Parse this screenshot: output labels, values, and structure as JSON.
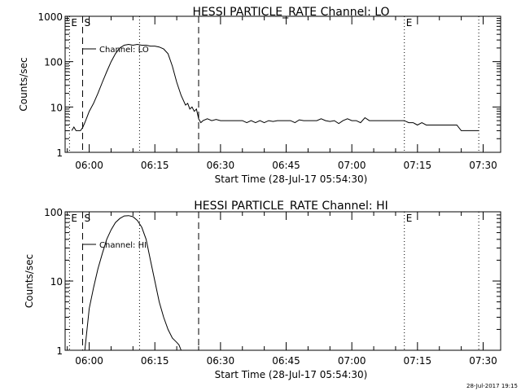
{
  "footer": {
    "timestamp": "28-Jul-2017 19:15"
  },
  "chart_data": [
    {
      "type": "line",
      "title": "HESSI PARTICLE_RATE Channel: LO",
      "xlabel": "Start Time (28-Jul-17 05:54:30)",
      "ylabel": "Counts/sec",
      "yscale": "log",
      "ylim": [
        1,
        1000
      ],
      "xlim": [
        "05:54:30",
        "07:34:00"
      ],
      "x_ticks": [
        "06:00",
        "06:15",
        "06:30",
        "06:45",
        "07:00",
        "07:15",
        "07:30"
      ],
      "y_ticks": [
        "1",
        "10",
        "100",
        "1000"
      ],
      "legend": {
        "label": "Channel: LO",
        "placement": "top-left"
      },
      "markers": [
        {
          "label": "E",
          "time": "05:55:30",
          "style": "dotted"
        },
        {
          "label": "S",
          "time": "05:58:30",
          "style": "dashed"
        },
        {
          "label": "",
          "time": "06:11:30",
          "style": "dotted"
        },
        {
          "label": "",
          "time": "06:25:00",
          "style": "dashed"
        },
        {
          "label": "E",
          "time": "07:12:00",
          "style": "dotted"
        },
        {
          "label": "",
          "time": "07:29:00",
          "style": "dotted"
        }
      ],
      "series": [
        {
          "x": [
            "05:56:00",
            "05:56:30",
            "05:57:00",
            "05:57:30",
            "05:58:00",
            "05:58:30",
            "05:59:00",
            "05:59:30",
            "06:00:00",
            "06:01:00",
            "06:02:00",
            "06:03:00",
            "06:04:00",
            "06:05:00",
            "06:06:00",
            "06:07:00",
            "06:08:00",
            "06:09:00",
            "06:10:00",
            "06:11:00",
            "06:12:00",
            "06:13:00",
            "06:14:00",
            "06:15:00",
            "06:16:00",
            "06:17:00",
            "06:18:00",
            "06:19:00",
            "06:20:00",
            "06:21:00",
            "06:22:00",
            "06:22:30",
            "06:23:00",
            "06:23:30",
            "06:24:00",
            "06:24:30",
            "06:25:00",
            "06:25:30",
            "06:26:00",
            "06:27:00",
            "06:28:00",
            "06:29:00",
            "06:30:00",
            "06:31:00",
            "06:32:00",
            "06:33:00",
            "06:34:00",
            "06:35:00",
            "06:36:00",
            "06:37:00",
            "06:38:00",
            "06:39:00",
            "06:40:00",
            "06:41:00",
            "06:42:00",
            "06:43:00",
            "06:44:00",
            "06:45:00",
            "06:46:00",
            "06:47:00",
            "06:48:00",
            "06:49:00",
            "06:50:00",
            "06:51:00",
            "06:52:00",
            "06:53:00",
            "06:54:00",
            "06:55:00",
            "06:56:00",
            "06:57:00",
            "06:58:00",
            "06:59:00",
            "07:00:00",
            "07:01:00",
            "07:02:00",
            "07:03:00",
            "07:04:00",
            "07:05:00",
            "07:06:00",
            "07:07:00",
            "07:08:00",
            "07:09:00",
            "07:10:00",
            "07:11:00",
            "07:12:00",
            "07:13:00",
            "07:14:00",
            "07:15:00",
            "07:16:00",
            "07:17:00",
            "07:18:00",
            "07:19:00",
            "07:20:00",
            "07:21:00",
            "07:22:00",
            "07:23:00",
            "07:24:00",
            "07:25:00",
            "07:26:00",
            "07:27:00",
            "07:28:00",
            "07:29:00"
          ],
          "y": [
            3,
            3.6,
            3,
            3,
            3,
            3.5,
            4.5,
            6,
            8,
            12,
            20,
            35,
            60,
            100,
            150,
            200,
            230,
            240,
            230,
            240,
            230,
            230,
            220,
            220,
            210,
            190,
            150,
            80,
            35,
            18,
            11,
            12,
            9,
            10,
            8,
            9,
            5.5,
            4.5,
            5,
            5.5,
            5,
            5.3,
            5,
            5,
            5,
            5,
            5,
            5,
            4.5,
            5,
            4.5,
            5,
            4.5,
            5,
            4.8,
            5,
            5,
            5,
            5,
            4.5,
            5.2,
            5,
            5,
            5,
            5,
            5.5,
            5,
            4.8,
            5,
            4.3,
            5,
            5.5,
            5,
            5,
            4.5,
            5.8,
            5,
            5,
            5,
            5,
            5,
            5,
            5,
            5,
            5,
            4.5,
            4.5,
            4,
            4.5,
            4,
            4,
            4,
            4,
            4,
            4,
            4,
            4,
            3,
            3,
            3,
            3,
            3
          ]
        }
      ]
    },
    {
      "type": "line",
      "title": "HESSI PARTICLE_RATE Channel: HI",
      "xlabel": "Start Time (28-Jul-17 05:54:30)",
      "ylabel": "Counts/sec",
      "yscale": "log",
      "ylim": [
        1,
        100
      ],
      "xlim": [
        "05:54:30",
        "07:34:00"
      ],
      "x_ticks": [
        "06:00",
        "06:15",
        "06:30",
        "06:45",
        "07:00",
        "07:15",
        "07:30"
      ],
      "y_ticks": [
        "1",
        "10",
        "100"
      ],
      "legend": {
        "label": "Channel: HI",
        "placement": "top-left"
      },
      "markers": [
        {
          "label": "E",
          "time": "05:55:30",
          "style": "dotted"
        },
        {
          "label": "S",
          "time": "05:58:30",
          "style": "dashed"
        },
        {
          "label": "",
          "time": "06:11:30",
          "style": "dotted"
        },
        {
          "label": "",
          "time": "06:25:00",
          "style": "dashed"
        },
        {
          "label": "E",
          "time": "07:12:00",
          "style": "dotted"
        },
        {
          "label": "",
          "time": "07:29:00",
          "style": "dotted"
        }
      ],
      "series": [
        {
          "x": [
            "05:59:00",
            "05:59:30",
            "06:00:00",
            "06:01:00",
            "06:02:00",
            "06:03:00",
            "06:04:00",
            "06:05:00",
            "06:06:00",
            "06:07:00",
            "06:08:00",
            "06:09:00",
            "06:10:00",
            "06:11:00",
            "06:12:00",
            "06:13:00",
            "06:14:00",
            "06:15:00",
            "06:16:00",
            "06:17:00",
            "06:18:00",
            "06:19:00",
            "06:20:00",
            "06:20:30",
            "06:21:00"
          ],
          "y": [
            1,
            2,
            4,
            8,
            15,
            25,
            40,
            55,
            70,
            80,
            87,
            88,
            85,
            75,
            60,
            40,
            20,
            10,
            5,
            3,
            2,
            1.5,
            1.3,
            1.2,
            1
          ]
        }
      ]
    }
  ]
}
